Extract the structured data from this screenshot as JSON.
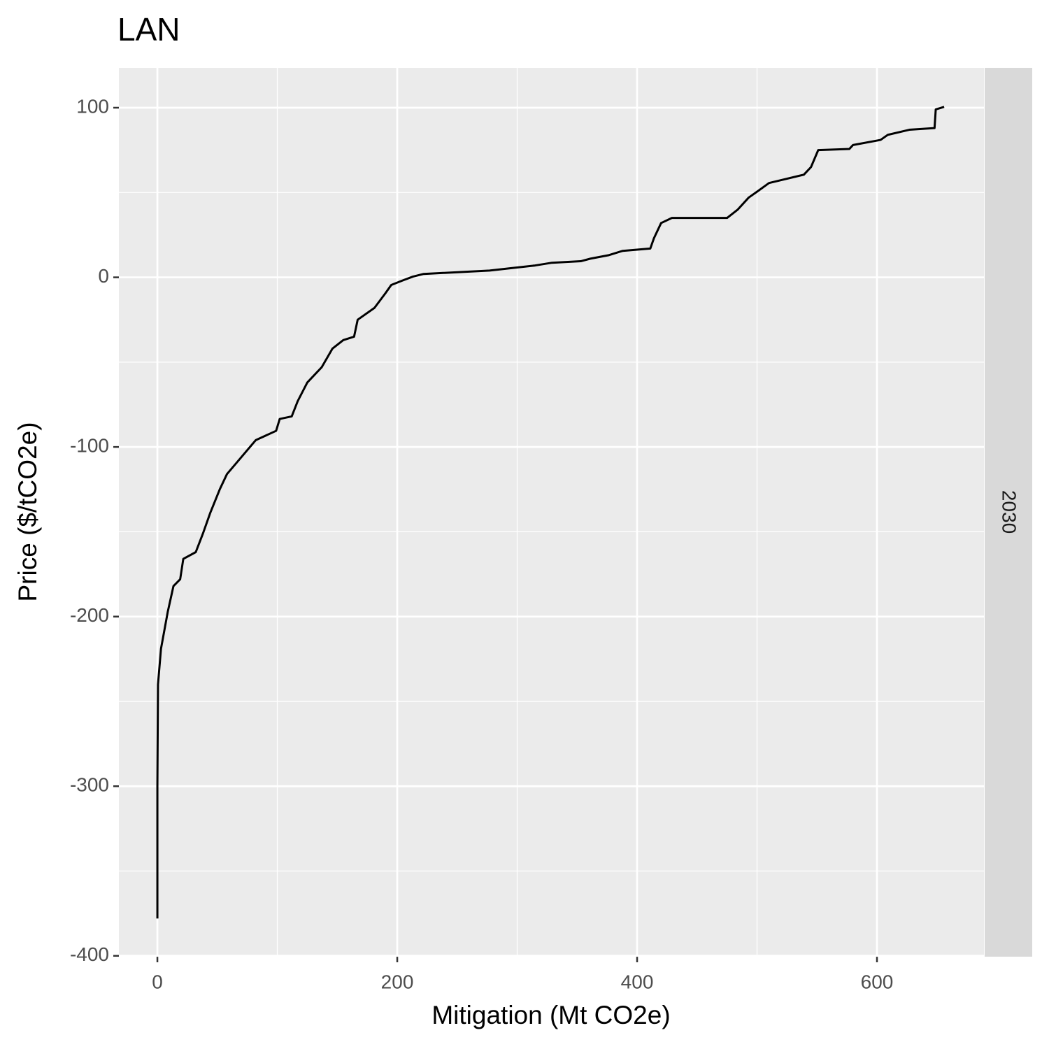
{
  "chart_data": {
    "type": "line",
    "title": "LAN",
    "x_label": "Mitigation (Mt CO2e)",
    "y_label": "Price ($/tCO2e)",
    "facet_label": "2030",
    "x": [
      0,
      0,
      0.5,
      3,
      8.7,
      13.4,
      19,
      21.6,
      32,
      38,
      44,
      52,
      58,
      70,
      82,
      99,
      102,
      112,
      117,
      125,
      137,
      146,
      155,
      164,
      167,
      181,
      190,
      195,
      204,
      213,
      222,
      277,
      315,
      329,
      353,
      361,
      376,
      388,
      411,
      414,
      420,
      429,
      475,
      484,
      493,
      501,
      510,
      539,
      545,
      551,
      577,
      580,
      603,
      609,
      627,
      648,
      649,
      656
    ],
    "series": [
      {
        "color": "#000000",
        "values": [
          -378,
          -300,
          -240,
          -219,
          -197,
          -182,
          -178,
          -166,
          -162,
          -151,
          -139,
          -125,
          -116,
          -106,
          -96,
          -90.5,
          -83.5,
          -82,
          -73,
          -62,
          -53,
          -42,
          -37,
          -35,
          -25,
          -18,
          -9.5,
          -4.5,
          -2,
          0.4,
          2,
          4,
          7,
          8.6,
          9.5,
          11,
          13,
          15.6,
          17,
          23,
          32,
          35,
          35,
          40,
          47,
          51,
          55.6,
          60.5,
          65,
          75,
          75.7,
          78,
          81,
          84,
          87,
          88,
          99,
          100.5
        ]
      }
    ],
    "xlim": [
      -32.1,
      689.2
    ],
    "ylim": [
      -400.5,
      123.5
    ],
    "xticks": [
      0,
      200,
      400,
      600
    ],
    "yticks": [
      -400,
      -300,
      -200,
      -100,
      0,
      100
    ],
    "x_minor_ticks": [
      100,
      300,
      500
    ],
    "y_minor_ticks": [
      -350,
      -250,
      -150,
      -50,
      50
    ],
    "grid": true
  }
}
